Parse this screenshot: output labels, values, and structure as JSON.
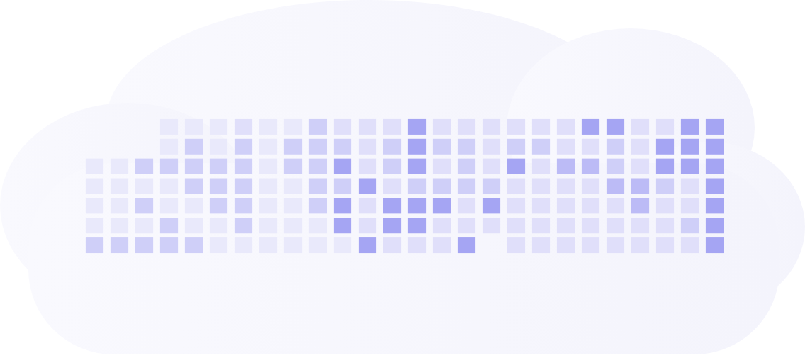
{
  "chart_data": {
    "type": "heatmap",
    "tick_labels": false,
    "color": "#a5a5f3",
    "zlim": [
      0,
      4
    ],
    "cells": [
      [
        null,
        null,
        null,
        0,
        0,
        0,
        1,
        0,
        0,
        2,
        1,
        1,
        1,
        4,
        1,
        1,
        1,
        1,
        1,
        1,
        4,
        4,
        1,
        1,
        4,
        4
      ],
      [
        null,
        null,
        null,
        0,
        2,
        0,
        2,
        0,
        2,
        2,
        2,
        1,
        2,
        4,
        2,
        2,
        1,
        2,
        2,
        1,
        1,
        2,
        1,
        4,
        4,
        4
      ],
      [
        0,
        0,
        2,
        2,
        2,
        2,
        2,
        0,
        2,
        2,
        4,
        1,
        2,
        4,
        1,
        2,
        1,
        4,
        1,
        3,
        3,
        2,
        1,
        4,
        4,
        4
      ],
      [
        0,
        0,
        0,
        0,
        2,
        2,
        2,
        0,
        0,
        2,
        2,
        4,
        1,
        2,
        2,
        2,
        2,
        1,
        1,
        1,
        1,
        3,
        3,
        2,
        1,
        4
      ],
      [
        0,
        0,
        2,
        0,
        0,
        2,
        2,
        0,
        0,
        2,
        4,
        1,
        4,
        4,
        4,
        1,
        4,
        1,
        1,
        1,
        1,
        1,
        3,
        1,
        1,
        4
      ],
      [
        0,
        0,
        0,
        2,
        0,
        0,
        2,
        0,
        0,
        0,
        4,
        1,
        4,
        4,
        1,
        1,
        1,
        1,
        1,
        1,
        1,
        1,
        1,
        1,
        2,
        4
      ],
      [
        2,
        2,
        2,
        2,
        2,
        0,
        0,
        0,
        0,
        0,
        0,
        4,
        1,
        1,
        1,
        4,
        null,
        1,
        1,
        1,
        1,
        1,
        1,
        1,
        1,
        4
      ]
    ]
  }
}
